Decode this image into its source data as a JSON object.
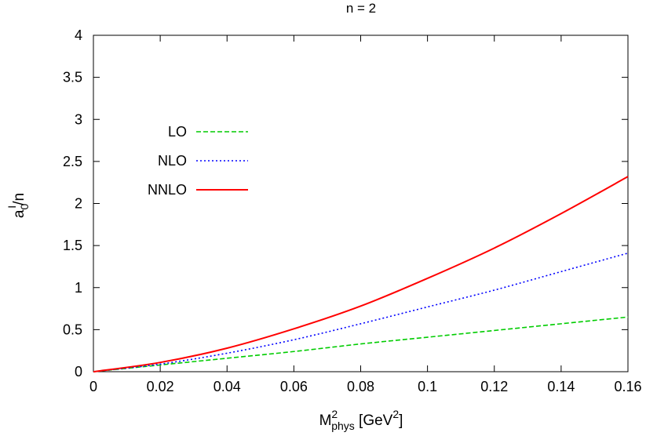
{
  "chart_data": {
    "type": "line",
    "title": "n = 2",
    "xlabel": {
      "base": "M",
      "sup": "2",
      "sub": "phys",
      "unit_open": " [GeV",
      "unit_sup": "2",
      "unit_close": "]"
    },
    "ylabel": {
      "base": "a",
      "sub": "0",
      "sup": "I",
      "suffix": "/n"
    },
    "xlim": [
      0,
      0.16
    ],
    "ylim": [
      0,
      4
    ],
    "xticks": [
      "0",
      "0.02",
      "0.04",
      "0.06",
      "0.08",
      "0.1",
      "0.12",
      "0.14",
      "0.16"
    ],
    "yticks": [
      "0",
      "0.5",
      "1",
      "1.5",
      "2",
      "2.5",
      "3",
      "3.5",
      "4"
    ],
    "legend_position": "upper-left",
    "grid": false,
    "x": [
      0,
      0.02,
      0.04,
      0.06,
      0.08,
      0.1,
      0.12,
      0.14,
      0.16
    ],
    "series": [
      {
        "name": "LO",
        "color": "#00cc00",
        "style": "dashed",
        "values": [
          0,
          0.08,
          0.16,
          0.24,
          0.33,
          0.41,
          0.49,
          0.57,
          0.65
        ]
      },
      {
        "name": "NLO",
        "color": "#0000ff",
        "style": "dotted",
        "values": [
          0,
          0.09,
          0.22,
          0.38,
          0.57,
          0.77,
          0.97,
          1.19,
          1.41
        ]
      },
      {
        "name": "NNLO",
        "color": "#ff0000",
        "style": "solid",
        "values": [
          0,
          0.11,
          0.28,
          0.51,
          0.78,
          1.11,
          1.47,
          1.88,
          2.32
        ]
      }
    ]
  }
}
